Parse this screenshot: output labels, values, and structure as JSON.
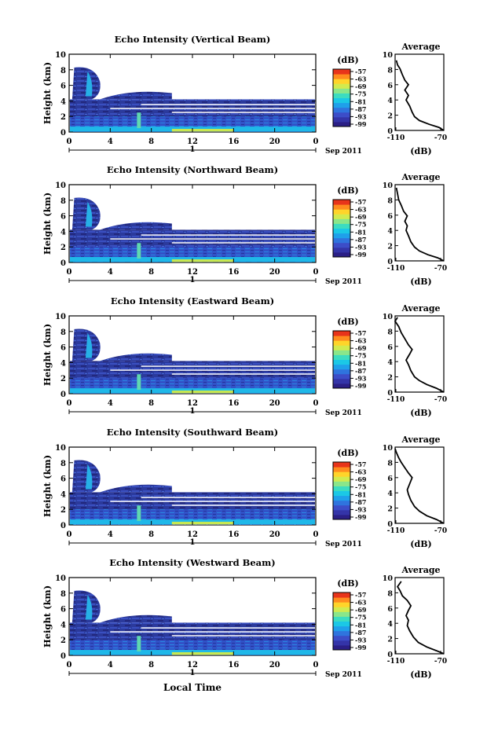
{
  "colors": {
    "background": "#ffffff",
    "colorbar": [
      "#2b1f86",
      "#3434a8",
      "#3c4dc8",
      "#2f74de",
      "#1fa0ea",
      "#1bc8e6",
      "#3cdcc0",
      "#8ae68a",
      "#d2ea4e",
      "#ffd42a",
      "#ff8c1e",
      "#e8341a"
    ]
  },
  "x_axis_label": "Local Time",
  "chart_data": [
    {
      "type": "heatmap",
      "title": "Echo Intensity (Vertical Beam)",
      "ylabel": "Height (km)",
      "ylim": [
        0,
        10
      ],
      "yticks": [
        "0",
        "2",
        "4",
        "6",
        "8",
        "10"
      ],
      "xlim": [
        0,
        24
      ],
      "xticks": [
        "0",
        "4",
        "8",
        "12",
        "16",
        "20",
        "0"
      ],
      "date_marker": "1",
      "date_label": "Sep 2011",
      "colorbar": {
        "unit": "(dB)",
        "ticks": [
          "-57",
          "-63",
          "-69",
          "-75",
          "-81",
          "-87",
          "-93",
          "-99"
        ]
      },
      "average": {
        "title": "Average",
        "xlabel": "(dB)",
        "xticks": [
          "-110",
          "-70"
        ],
        "xlim": [
          -110,
          -70
        ],
        "profile": [
          [
            -70,
            0
          ],
          [
            -74,
            0.4
          ],
          [
            -82,
            0.8
          ],
          [
            -90,
            1.3
          ],
          [
            -94,
            1.8
          ],
          [
            -96,
            2.4
          ],
          [
            -98,
            3.2
          ],
          [
            -101,
            4
          ],
          [
            -99,
            4.6
          ],
          [
            -102,
            5.3
          ],
          [
            -99,
            6
          ],
          [
            -102,
            6.6
          ],
          [
            -104,
            7.3
          ],
          [
            -106,
            8.1
          ],
          [
            -108,
            8.6
          ],
          [
            -109,
            9.2
          ]
        ]
      }
    },
    {
      "type": "heatmap",
      "title": "Echo Intensity (Northward Beam)",
      "ylabel": "Height (km)",
      "ylim": [
        0,
        10
      ],
      "yticks": [
        "0",
        "2",
        "4",
        "6",
        "8",
        "10"
      ],
      "xlim": [
        0,
        24
      ],
      "xticks": [
        "0",
        "4",
        "8",
        "12",
        "16",
        "20",
        "0"
      ],
      "date_marker": "1",
      "date_label": "Sep 2011",
      "colorbar": {
        "unit": "(dB)",
        "ticks": [
          "-57",
          "-63",
          "-69",
          "-75",
          "-81",
          "-87",
          "-93",
          "-99"
        ]
      },
      "average": {
        "title": "Average",
        "xlabel": "(dB)",
        "xticks": [
          "-110",
          "-70"
        ],
        "xlim": [
          -110,
          -70
        ],
        "profile": [
          [
            -70,
            0
          ],
          [
            -75,
            0.4
          ],
          [
            -83,
            0.8
          ],
          [
            -90,
            1.3
          ],
          [
            -94,
            1.8
          ],
          [
            -97,
            2.5
          ],
          [
            -99,
            3.3
          ],
          [
            -101,
            4
          ],
          [
            -100,
            4.6
          ],
          [
            -102,
            5.2
          ],
          [
            -100,
            5.9
          ],
          [
            -103,
            6.5
          ],
          [
            -105,
            7.3
          ],
          [
            -107,
            8
          ],
          [
            -108,
            8.8
          ],
          [
            -109,
            9.6
          ]
        ]
      }
    },
    {
      "type": "heatmap",
      "title": "Echo Intensity (Eastward Beam)",
      "ylabel": "Height (km)",
      "ylim": [
        0,
        10
      ],
      "yticks": [
        "0",
        "2",
        "4",
        "6",
        "8",
        "10"
      ],
      "xlim": [
        0,
        24
      ],
      "xticks": [
        "0",
        "4",
        "8",
        "12",
        "16",
        "20",
        "0"
      ],
      "date_marker": "1",
      "date_label": "Sep 2011",
      "colorbar": {
        "unit": "(dB)",
        "ticks": [
          "-57",
          "-63",
          "-69",
          "-75",
          "-81",
          "-87",
          "-93",
          "-99"
        ]
      },
      "average": {
        "title": "Average",
        "xlabel": "(dB)",
        "xticks": [
          "-110",
          "-70"
        ],
        "xlim": [
          -110,
          -70
        ],
        "profile": [
          [
            -70,
            0
          ],
          [
            -76,
            0.5
          ],
          [
            -84,
            1
          ],
          [
            -90,
            1.5
          ],
          [
            -94,
            2
          ],
          [
            -97,
            2.8
          ],
          [
            -99,
            3.6
          ],
          [
            -101,
            4.2
          ],
          [
            -98,
            5
          ],
          [
            -96,
            5.6
          ],
          [
            -99,
            6.2
          ],
          [
            -102,
            7
          ],
          [
            -105,
            7.8
          ],
          [
            -107,
            8.6
          ],
          [
            -110,
            9.3
          ],
          [
            -108,
            9.8
          ]
        ]
      }
    },
    {
      "type": "heatmap",
      "title": "Echo Intensity (Southward Beam)",
      "ylabel": "Height (km)",
      "ylim": [
        0,
        10
      ],
      "yticks": [
        "0",
        "2",
        "4",
        "6",
        "8",
        "10"
      ],
      "xlim": [
        0,
        24
      ],
      "xticks": [
        "0",
        "4",
        "8",
        "12",
        "16",
        "20",
        "0"
      ],
      "date_marker": "1",
      "date_label": "Sep 2011",
      "colorbar": {
        "unit": "(dB)",
        "ticks": [
          "-57",
          "-63",
          "-69",
          "-75",
          "-81",
          "-87",
          "-93",
          "-99"
        ]
      },
      "average": {
        "title": "Average",
        "xlabel": "(dB)",
        "xticks": [
          "-110",
          "-70"
        ],
        "xlim": [
          -110,
          -70
        ],
        "profile": [
          [
            -70,
            0
          ],
          [
            -76,
            0.5
          ],
          [
            -84,
            1
          ],
          [
            -90,
            1.6
          ],
          [
            -94,
            2.2
          ],
          [
            -97,
            3
          ],
          [
            -99,
            3.8
          ],
          [
            -100,
            4.4
          ],
          [
            -98,
            5.2
          ],
          [
            -96,
            6
          ],
          [
            -99,
            6.6
          ],
          [
            -102,
            7.3
          ],
          [
            -105,
            8
          ],
          [
            -107,
            8.6
          ],
          [
            -109,
            9.3
          ],
          [
            -110,
            9.8
          ]
        ]
      }
    },
    {
      "type": "heatmap",
      "title": "Echo Intensity (Westward Beam)",
      "ylabel": "Height (km)",
      "ylim": [
        0,
        10
      ],
      "yticks": [
        "0",
        "2",
        "4",
        "6",
        "8",
        "10"
      ],
      "xlim": [
        0,
        24
      ],
      "xticks": [
        "0",
        "4",
        "8",
        "12",
        "16",
        "20",
        "0"
      ],
      "date_marker": "1",
      "date_label": "Sep 2011",
      "colorbar": {
        "unit": "(dB)",
        "ticks": [
          "-57",
          "-63",
          "-69",
          "-75",
          "-81",
          "-87",
          "-93",
          "-99"
        ]
      },
      "average": {
        "title": "Average",
        "xlabel": "(dB)",
        "xticks": [
          "-110",
          "-70"
        ],
        "xlim": [
          -110,
          -70
        ],
        "profile": [
          [
            -70,
            0
          ],
          [
            -76,
            0.4
          ],
          [
            -84,
            0.9
          ],
          [
            -91,
            1.5
          ],
          [
            -95,
            2.2
          ],
          [
            -98,
            3
          ],
          [
            -100,
            3.7
          ],
          [
            -99,
            4.4
          ],
          [
            -101,
            5
          ],
          [
            -99,
            5.7
          ],
          [
            -97,
            6.3
          ],
          [
            -100,
            7
          ],
          [
            -104,
            7.6
          ],
          [
            -106,
            8.3
          ],
          [
            -108,
            8.8
          ],
          [
            -105,
            9.5
          ]
        ]
      }
    }
  ]
}
